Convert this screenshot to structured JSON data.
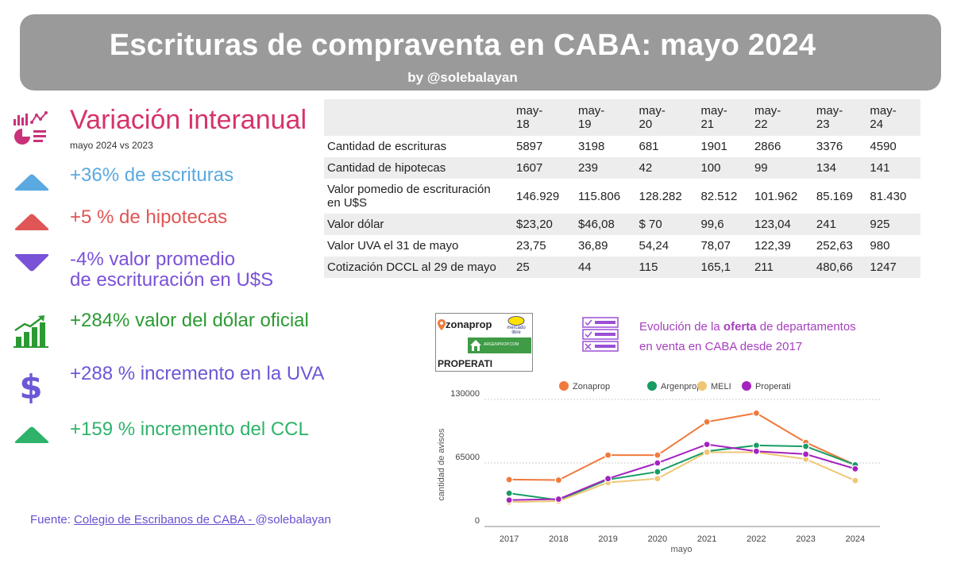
{
  "header": {
    "title": "Escrituras de compraventa en CABA:  mayo 2024",
    "byline": "by @solebalayan"
  },
  "variation": {
    "title": "Variación  interanual",
    "subtitle": "mayo 2024 vs 2023",
    "stats": [
      {
        "text": "+36% de escrituras",
        "color": "#5aa9e0",
        "icon": "triangle-up-icon"
      },
      {
        "text": "+5 % de hipotecas",
        "color": "#e05555",
        "icon": "triangle-up-icon"
      },
      {
        "text_line1": "-4% valor promedio",
        "text_line2": "de escrituración en U$S",
        "color": "#7a52d8",
        "icon": "triangle-down-icon"
      },
      {
        "text": "+284% valor del dólar oficial",
        "color": "#2c9a33",
        "icon": "growth-chart-icon"
      },
      {
        "text": "+288 % incremento en la UVA",
        "color": "#6c57d6",
        "icon": "dollar-sign-icon"
      },
      {
        "text": "+159 % incremento del CCL",
        "color": "#2fb36a",
        "icon": "triangle-up-icon"
      }
    ]
  },
  "source": {
    "prefix": "Fuente: ",
    "link": "Colegio de  Escribanos de CABA  - ",
    "suffix": " @solebalayan"
  },
  "table": {
    "headers": [
      [
        "may-",
        "18"
      ],
      [
        "may-",
        "19"
      ],
      [
        "may-",
        "20"
      ],
      [
        "may-",
        "21"
      ],
      [
        "may-",
        "22"
      ],
      [
        "may-",
        "23"
      ],
      [
        "may-",
        "24"
      ]
    ],
    "rows": [
      {
        "label": "Cantidad de escrituras",
        "values": [
          "5897",
          "3198",
          "681",
          "1901",
          "2866",
          "3376",
          "4590"
        ]
      },
      {
        "label": "Cantidad de hipotecas",
        "values": [
          "1607",
          "239",
          "42",
          "100",
          "99",
          "134",
          "141"
        ]
      },
      {
        "label_line1": "Valor pomedio de escrituración",
        "label_line2": "en U$S",
        "values": [
          "146.929",
          "115.806",
          "128.282",
          "82.512",
          "101.962",
          "85.169",
          "81.430"
        ]
      },
      {
        "label": "Valor dólar",
        "values": [
          "$23,20",
          "$46,08",
          "$ 70",
          "99,6",
          "123,04",
          "241",
          "925"
        ]
      },
      {
        "label": "Valor UVA el 31 de mayo",
        "values": [
          "23,75",
          "36,89",
          "54,24",
          "78,07",
          "122,39",
          "252,63",
          "980"
        ]
      },
      {
        "label": "Cotización DCCL al 29 de mayo",
        "values": [
          "25",
          "44",
          "115",
          "165,1",
          "211",
          "480,66",
          "1247"
        ]
      }
    ]
  },
  "logos": {
    "zonaprop": "zonaprop",
    "mercadolibre_line1": "mercado",
    "mercadolibre_line2": "libre",
    "argenprop": "ARGENPROP.COM",
    "properati": "PROPERATI"
  },
  "oferta": {
    "line1_pre": "Evolución de la ",
    "line1_bold": "oferta",
    "line1_post": " de departamentos",
    "line2": "en venta en CABA desde 2017",
    "icon": "checklist-icon"
  },
  "chart_data": {
    "type": "line",
    "title": "",
    "xlabel": "mayo",
    "ylabel": "cantidad de avisos",
    "x": [
      "2017",
      "2018",
      "2019",
      "2020",
      "2021",
      "2022",
      "2023",
      "2024"
    ],
    "ylim": [
      0,
      130000
    ],
    "yticks": [
      "0",
      "65000",
      "130000"
    ],
    "grid": true,
    "legend_position": "top",
    "series": [
      {
        "name": "Zonaprop",
        "color": "#f07a3c",
        "values": [
          48000,
          47500,
          73000,
          73000,
          107000,
          116000,
          86000,
          63000
        ]
      },
      {
        "name": "Argenprop",
        "color": "#179c63",
        "values": [
          34000,
          27000,
          48000,
          56000,
          77000,
          83000,
          82000,
          63000
        ]
      },
      {
        "name": "MELI",
        "color": "#efc774",
        "values": [
          25000,
          26000,
          45000,
          49000,
          76000,
          76000,
          69000,
          47000
        ]
      },
      {
        "name": "Properati",
        "color": "#a323bf",
        "values": [
          27000,
          28000,
          49000,
          65000,
          84000,
          77000,
          74000,
          59000
        ]
      }
    ]
  }
}
